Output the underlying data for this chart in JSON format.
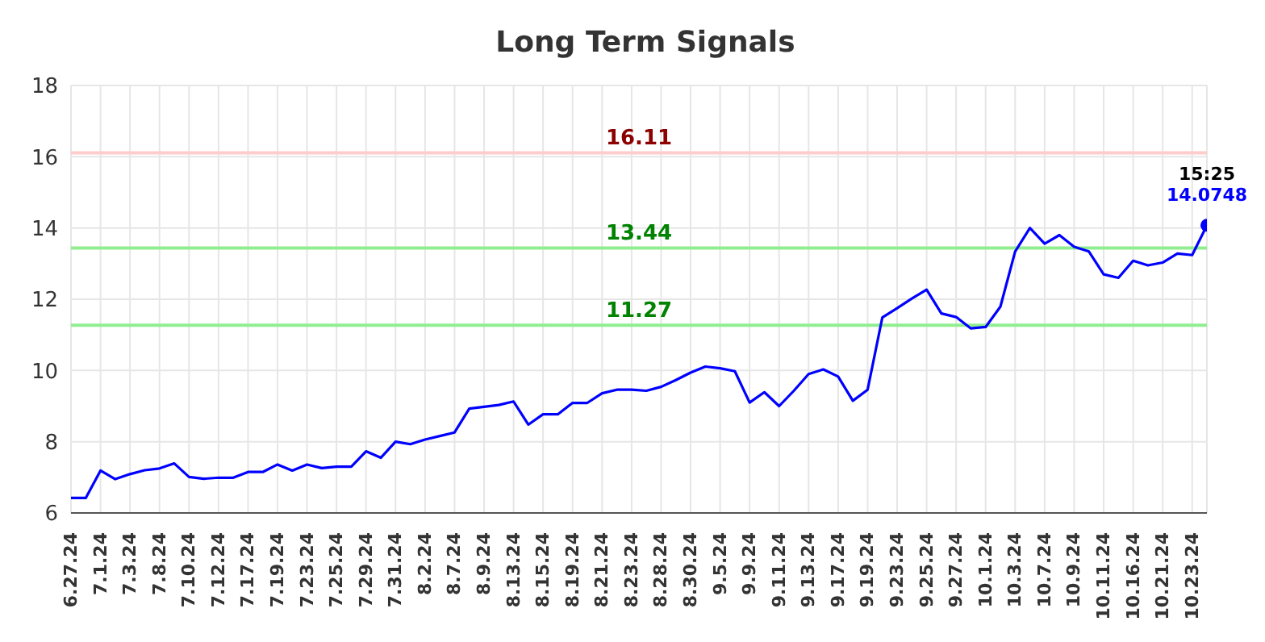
{
  "chart_data": {
    "type": "line",
    "title": "Long Term Signals",
    "categories": [
      "6.27.24",
      null,
      "7.1.24",
      null,
      "7.3.24",
      null,
      "7.8.24",
      null,
      "7.10.24",
      null,
      "7.12.24",
      null,
      "7.17.24",
      null,
      "7.19.24",
      null,
      "7.23.24",
      null,
      "7.25.24",
      null,
      "7.29.24",
      null,
      "7.31.24",
      null,
      "8.2.24",
      null,
      "8.7.24",
      null,
      "8.9.24",
      null,
      "8.13.24",
      null,
      "8.15.24",
      null,
      "8.19.24",
      null,
      "8.21.24",
      null,
      "8.23.24",
      null,
      "8.28.24",
      null,
      "8.30.24",
      null,
      "9.5.24",
      null,
      "9.9.24",
      null,
      "9.11.24",
      null,
      "9.13.24",
      null,
      "9.17.24",
      null,
      "9.19.24",
      null,
      "9.23.24",
      null,
      "9.25.24",
      null,
      "9.27.24",
      null,
      "10.1.24",
      null,
      "10.3.24",
      null,
      "10.7.24",
      null,
      "10.9.24",
      null,
      "10.11.24",
      null,
      "10.16.24",
      null,
      "10.21.24",
      null,
      "10.23.24",
      null
    ],
    "series": [
      {
        "color": "#0000ff",
        "values": [
          6.42,
          6.42,
          7.19,
          6.95,
          7.09,
          7.2,
          7.25,
          7.39,
          7.01,
          6.96,
          6.99,
          6.99,
          7.15,
          7.15,
          7.36,
          7.19,
          7.36,
          7.26,
          7.3,
          7.3,
          7.73,
          7.55,
          8.0,
          7.93,
          8.06,
          8.16,
          8.26,
          8.93,
          8.98,
          9.03,
          9.13,
          8.48,
          8.77,
          8.77,
          9.09,
          9.09,
          9.36,
          9.46,
          9.46,
          9.43,
          9.54,
          9.73,
          9.94,
          10.11,
          10.06,
          9.98,
          9.1,
          9.39,
          9.0,
          9.43,
          9.9,
          10.03,
          9.83,
          9.15,
          9.46,
          11.49,
          11.75,
          12.02,
          12.27,
          11.6,
          11.5,
          11.18,
          11.22,
          11.79,
          13.34,
          14.0,
          13.56,
          13.8,
          13.47,
          13.34,
          12.7,
          12.6,
          13.08,
          12.95,
          13.03,
          13.28,
          13.24,
          14.0748
        ]
      }
    ],
    "ylim": [
      6,
      18
    ],
    "yticks": [
      6,
      8,
      10,
      12,
      14,
      16,
      18
    ],
    "grid": true,
    "marker": "none",
    "ref_lines": [
      {
        "axis": "y",
        "value": 16.11,
        "label": "16.11",
        "color": "#ffcccc"
      },
      {
        "axis": "y",
        "value": 13.44,
        "label": "13.44",
        "color": "#90ee90"
      },
      {
        "axis": "y",
        "value": 11.27,
        "label": "11.27",
        "color": "#90ee90"
      }
    ],
    "annotations": [
      {
        "text": "15:25",
        "y": 14.0748
      },
      {
        "text": "14.0748",
        "y": 14.0748
      }
    ]
  }
}
